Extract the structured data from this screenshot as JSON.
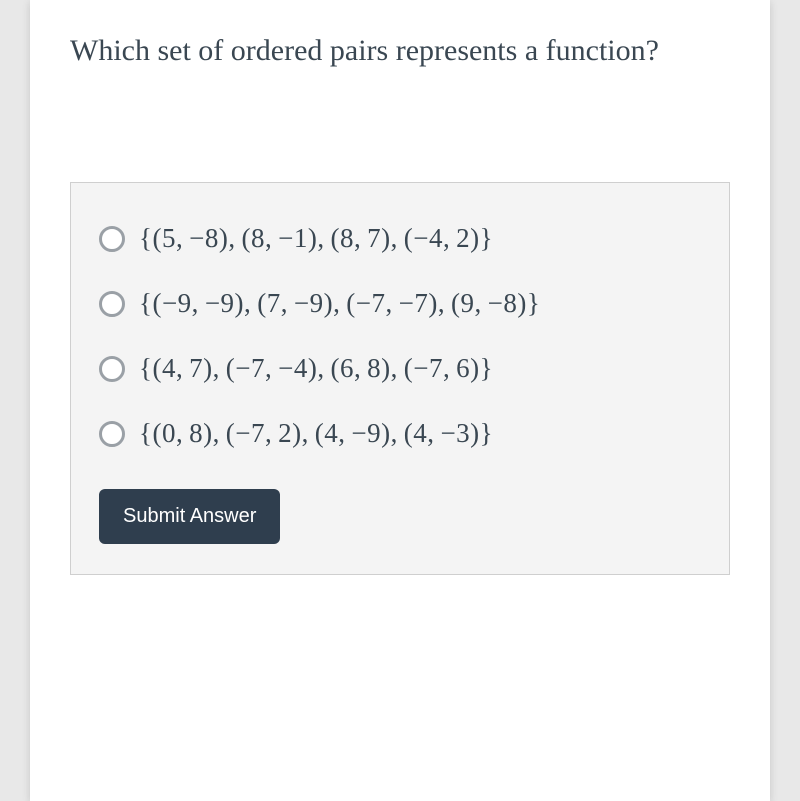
{
  "question": {
    "text": "Which set of ordered pairs represents a function?"
  },
  "options": [
    {
      "label": "{(5, −8), (8, −1), (8, 7), (−4, 2)}"
    },
    {
      "label": "{(−9, −9), (7, −9), (−7, −7), (9, −8)}"
    },
    {
      "label": "{(4, 7), (−7, −4), (6, 8), (−7, 6)}"
    },
    {
      "label": "{(0, 8), (−7, 2), (4, −9), (4, −3)}"
    }
  ],
  "submit": {
    "label": "Submit Answer"
  },
  "colors": {
    "text": "#3a4752",
    "card_bg": "#ffffff",
    "answers_bg": "#f4f4f4",
    "answers_border": "#cfcfcf",
    "radio_border": "#9aa0a6",
    "button_bg": "#2f3e4e",
    "button_text": "#ffffff",
    "page_bg": "#e8e8e8"
  }
}
